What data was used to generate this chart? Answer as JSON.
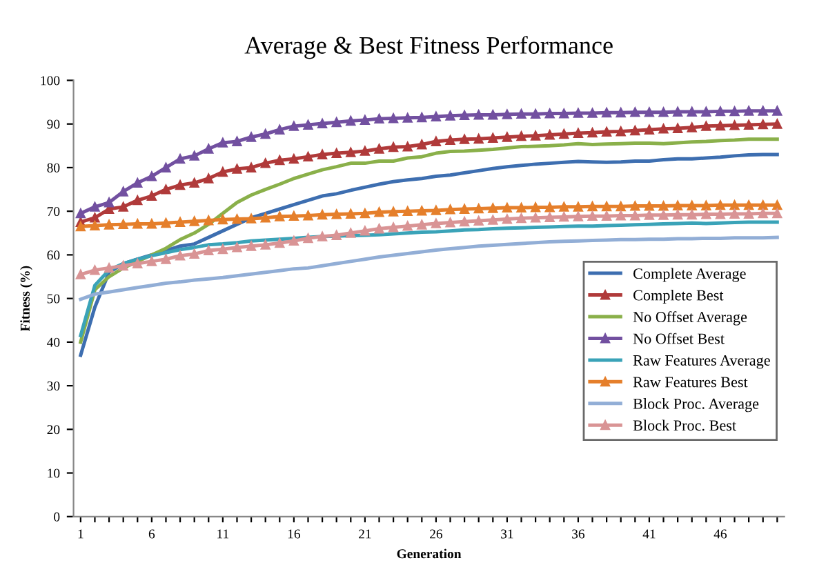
{
  "chart_data": {
    "type": "line",
    "title": "Average & Best Fitness Performance",
    "xlabel": "Generation",
    "ylabel": "Fitness (%)",
    "categories": [
      "1",
      null,
      null,
      null,
      null,
      "6",
      null,
      null,
      null,
      null,
      "11",
      null,
      null,
      null,
      null,
      "16",
      null,
      null,
      null,
      null,
      "21",
      null,
      null,
      null,
      null,
      "26",
      null,
      null,
      null,
      null,
      "31",
      null,
      null,
      null,
      null,
      "36",
      null,
      null,
      null,
      null,
      "41",
      null,
      null,
      null,
      null,
      "46",
      null,
      null,
      null,
      null
    ],
    "ylim": [
      0,
      100
    ],
    "yticks": [
      0,
      10,
      20,
      30,
      40,
      50,
      60,
      70,
      80,
      90,
      100
    ],
    "grid": false,
    "legend": "right",
    "series": [
      {
        "name": "Complete Average",
        "color": "#3d6eb0",
        "marker": "none",
        "values": [
          37,
          48,
          56,
          58,
          59,
          60,
          61,
          62,
          62.5,
          64,
          65.5,
          67,
          68.5,
          69.5,
          70.5,
          71.5,
          72.5,
          73.5,
          74,
          74.8,
          75.5,
          76.2,
          76.8,
          77.2,
          77.5,
          78,
          78.3,
          78.8,
          79.3,
          79.8,
          80.2,
          80.5,
          80.8,
          81,
          81.2,
          81.4,
          81.3,
          81.2,
          81.3,
          81.5,
          81.5,
          81.8,
          82,
          82,
          82.2,
          82.4,
          82.7,
          82.9,
          83,
          83
        ]
      },
      {
        "name": "Complete Best",
        "color": "#b03a3a",
        "marker": "triangle",
        "values": [
          67.5,
          68.5,
          70.5,
          71,
          72.5,
          73.5,
          75,
          76,
          76.5,
          77.5,
          79,
          79.7,
          80,
          81,
          81.7,
          82,
          82.5,
          83,
          83.3,
          83.5,
          83.8,
          84.3,
          84.7,
          84.8,
          85.3,
          86,
          86.3,
          86.5,
          86.6,
          86.8,
          87,
          87.2,
          87.3,
          87.5,
          87.7,
          87.9,
          88,
          88.2,
          88.3,
          88.5,
          88.7,
          88.9,
          89,
          89.2,
          89.5,
          89.6,
          89.7,
          89.8,
          89.9,
          90
        ]
      },
      {
        "name": "No Offset Average",
        "color": "#8ab04a",
        "marker": "none",
        "values": [
          40,
          52,
          55,
          57,
          58.5,
          60,
          61.5,
          63.5,
          65,
          67,
          69.5,
          72,
          73.7,
          75,
          76.2,
          77.5,
          78.5,
          79.5,
          80.2,
          81,
          81,
          81.5,
          81.5,
          82.2,
          82.5,
          83.3,
          83.7,
          83.8,
          84,
          84.2,
          84.5,
          84.8,
          84.9,
          85,
          85.2,
          85.5,
          85.3,
          85.4,
          85.5,
          85.6,
          85.6,
          85.5,
          85.7,
          85.9,
          86,
          86.2,
          86.3,
          86.5,
          86.5,
          86.5
        ]
      },
      {
        "name": "No Offset Best",
        "color": "#7250a0",
        "marker": "triangle",
        "values": [
          69.5,
          71,
          72,
          74.5,
          76.5,
          78,
          80,
          82,
          82.7,
          84.3,
          85.7,
          86,
          87,
          87.7,
          88.7,
          89.5,
          89.8,
          90.1,
          90.4,
          90.7,
          90.9,
          91.2,
          91.3,
          91.4,
          91.5,
          91.7,
          91.9,
          92,
          92.1,
          92.1,
          92.2,
          92.3,
          92.3,
          92.4,
          92.4,
          92.5,
          92.5,
          92.6,
          92.6,
          92.7,
          92.7,
          92.7,
          92.8,
          92.8,
          92.8,
          92.9,
          92.9,
          93,
          93,
          93
        ]
      },
      {
        "name": "Raw Features Average",
        "color": "#3aa3b8",
        "marker": "none",
        "values": [
          41.5,
          53,
          56.5,
          58,
          59,
          59.8,
          60.5,
          61.2,
          61.7,
          62.3,
          62.5,
          62.8,
          63.2,
          63.4,
          63.6,
          63.8,
          64,
          64.2,
          64.3,
          64.4,
          64.5,
          64.6,
          64.8,
          65,
          65.2,
          65.3,
          65.5,
          65.7,
          65.8,
          66,
          66.1,
          66.2,
          66.3,
          66.4,
          66.5,
          66.6,
          66.6,
          66.7,
          66.8,
          66.9,
          67,
          67.1,
          67.2,
          67.3,
          67.2,
          67.3,
          67.4,
          67.5,
          67.5,
          67.5
        ]
      },
      {
        "name": "Raw Features Best",
        "color": "#e57f2b",
        "marker": "triangle",
        "values": [
          66.5,
          66.7,
          66.9,
          67,
          67.1,
          67.1,
          67.3,
          67.5,
          67.7,
          67.9,
          68.1,
          68.2,
          68.3,
          68.5,
          68.8,
          68.9,
          69,
          69.2,
          69.3,
          69.4,
          69.5,
          69.8,
          69.9,
          70,
          70.1,
          70.2,
          70.4,
          70.5,
          70.6,
          70.7,
          70.8,
          70.8,
          70.9,
          70.9,
          71,
          71,
          71.1,
          71.1,
          71.1,
          71.2,
          71.2,
          71.2,
          71.3,
          71.3,
          71.3,
          71.4,
          71.4,
          71.4,
          71.4,
          71.4
        ]
      },
      {
        "name": "Block Proc. Average",
        "color": "#92aed6",
        "marker": "none",
        "values": [
          49.8,
          51,
          51.5,
          52,
          52.5,
          53,
          53.5,
          53.8,
          54.2,
          54.5,
          54.8,
          55.2,
          55.6,
          56,
          56.4,
          56.8,
          57,
          57.5,
          58,
          58.5,
          59,
          59.5,
          59.9,
          60.3,
          60.7,
          61.1,
          61.4,
          61.7,
          62,
          62.2,
          62.4,
          62.6,
          62.8,
          63,
          63.1,
          63.2,
          63.3,
          63.4,
          63.5,
          63.5,
          63.6,
          63.6,
          63.7,
          63.7,
          63.8,
          63.8,
          63.9,
          63.9,
          63.9,
          64
        ]
      },
      {
        "name": "Block Proc. Best",
        "color": "#d99495",
        "marker": "triangle",
        "values": [
          55.5,
          56.5,
          57,
          57.5,
          58,
          58.5,
          59,
          59.8,
          60.2,
          61,
          61.3,
          61.7,
          62,
          62.3,
          62.7,
          63.2,
          63.8,
          64.2,
          64.5,
          65,
          65.5,
          66,
          66.3,
          66.6,
          66.9,
          67.2,
          67.4,
          67.6,
          67.8,
          68,
          68.2,
          68.4,
          68.5,
          68.6,
          68.7,
          68.8,
          68.9,
          68.9,
          69,
          69,
          69.1,
          69.1,
          69.2,
          69.2,
          69.3,
          69.3,
          69.4,
          69.4,
          69.5,
          69.5
        ]
      }
    ]
  }
}
